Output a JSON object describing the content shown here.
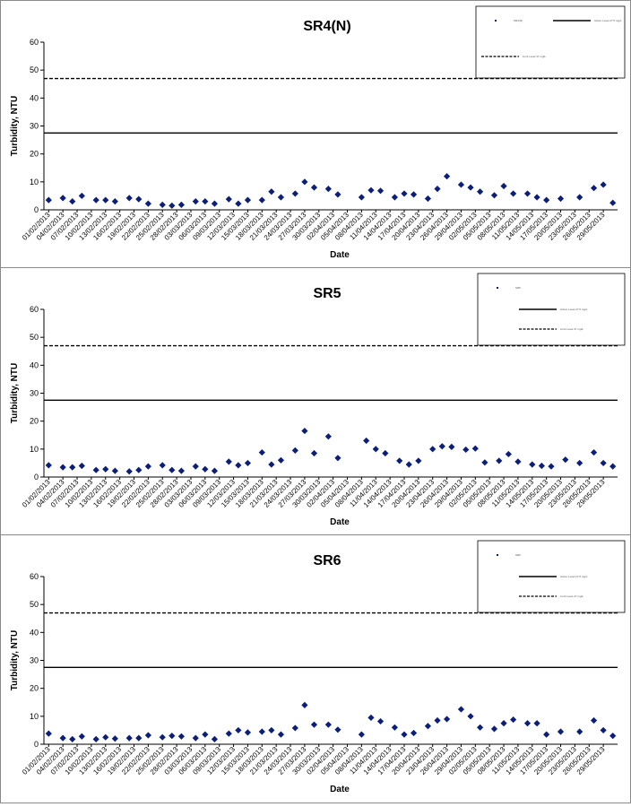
{
  "colors": {
    "marker": "#0b1f7a",
    "line": "#000000"
  },
  "chart_data": [
    {
      "type": "scatter",
      "title": "SR4(N)",
      "xlabel": "Date",
      "ylabel": "Turbidity, NTU",
      "ylim": [
        0,
        60
      ],
      "yticks": [
        0,
        10,
        20,
        30,
        40,
        50,
        60
      ],
      "grid": false,
      "legend_position": "top-right",
      "xticks": [
        "01/02/2013",
        "04/02/2013",
        "07/02/2013",
        "10/02/2013",
        "13/02/2013",
        "16/02/2013",
        "19/02/2013",
        "22/02/2013",
        "25/02/2013",
        "28/02/2013",
        "03/03/2013",
        "06/03/2013",
        "09/03/2013",
        "12/03/2013",
        "15/03/2013",
        "18/03/2013",
        "21/03/2013",
        "24/03/2013",
        "27/03/2013",
        "30/03/2013",
        "02/04/2013",
        "05/04/2013",
        "08/04/2013",
        "11/04/2013",
        "14/04/2013",
        "17/04/2013",
        "20/04/2013",
        "23/04/2013",
        "26/04/2013",
        "29/04/2013",
        "02/05/2013",
        "05/05/2013",
        "08/05/2013",
        "11/05/2013",
        "14/05/2013",
        "17/05/2013",
        "20/05/2013",
        "23/05/2013",
        "26/05/2013",
        "29/05/2013"
      ],
      "x_range": [
        "2013-02-01",
        "2013-05-31"
      ],
      "legend": [
        {
          "label": "SR4(N)",
          "kind": "marker"
        },
        {
          "label": "Action Level 27.5 mg/L",
          "kind": "solid"
        },
        {
          "label": "Limit Level 47 mg/L",
          "kind": "dashed"
        }
      ],
      "reference_lines": [
        {
          "name": "Action Level",
          "value": 27.5,
          "style": "solid"
        },
        {
          "name": "Limit Level",
          "value": 47,
          "style": "dashed"
        }
      ],
      "series": [
        {
          "name": "SR4(N)",
          "points": [
            [
              "2013-02-01",
              3.5
            ],
            [
              "2013-02-04",
              4.2
            ],
            [
              "2013-02-06",
              3.0
            ],
            [
              "2013-02-08",
              5.0
            ],
            [
              "2013-02-11",
              3.5
            ],
            [
              "2013-02-13",
              3.5
            ],
            [
              "2013-02-15",
              3.0
            ],
            [
              "2013-02-18",
              4.2
            ],
            [
              "2013-02-20",
              3.8
            ],
            [
              "2013-02-22",
              2.2
            ],
            [
              "2013-02-25",
              1.8
            ],
            [
              "2013-02-27",
              1.5
            ],
            [
              "2013-03-01",
              1.8
            ],
            [
              "2013-03-04",
              3.0
            ],
            [
              "2013-03-06",
              3.0
            ],
            [
              "2013-03-08",
              2.2
            ],
            [
              "2013-03-11",
              3.8
            ],
            [
              "2013-03-13",
              2.2
            ],
            [
              "2013-03-15",
              3.5
            ],
            [
              "2013-03-18",
              3.5
            ],
            [
              "2013-03-20",
              6.5
            ],
            [
              "2013-03-22",
              4.5
            ],
            [
              "2013-03-25",
              5.8
            ],
            [
              "2013-03-27",
              10.0
            ],
            [
              "2013-03-29",
              8.0
            ],
            [
              "2013-04-01",
              7.5
            ],
            [
              "2013-04-03",
              5.5
            ],
            [
              "2013-04-08",
              4.5
            ],
            [
              "2013-04-10",
              7.0
            ],
            [
              "2013-04-12",
              6.8
            ],
            [
              "2013-04-15",
              4.5
            ],
            [
              "2013-04-17",
              5.8
            ],
            [
              "2013-04-19",
              5.5
            ],
            [
              "2013-04-22",
              4.0
            ],
            [
              "2013-04-24",
              7.5
            ],
            [
              "2013-04-26",
              12.0
            ],
            [
              "2013-04-29",
              9.0
            ],
            [
              "2013-05-01",
              8.0
            ],
            [
              "2013-05-03",
              6.5
            ],
            [
              "2013-05-06",
              5.2
            ],
            [
              "2013-05-08",
              8.5
            ],
            [
              "2013-05-10",
              5.8
            ],
            [
              "2013-05-13",
              5.8
            ],
            [
              "2013-05-15",
              4.5
            ],
            [
              "2013-05-17",
              3.5
            ],
            [
              "2013-05-20",
              4.0
            ],
            [
              "2013-05-24",
              4.5
            ],
            [
              "2013-05-27",
              7.8
            ],
            [
              "2013-05-29",
              9.0
            ],
            [
              "2013-05-31",
              2.5
            ]
          ]
        }
      ]
    },
    {
      "type": "scatter",
      "title": "SR5",
      "xlabel": "Date",
      "ylabel": "Turbidity, NTU",
      "ylim": [
        0,
        60
      ],
      "yticks": [
        0,
        10,
        20,
        30,
        40,
        50,
        60
      ],
      "grid": false,
      "legend_position": "top-right",
      "xticks": [
        "01/02/2013",
        "04/02/2013",
        "07/02/2013",
        "10/02/2013",
        "13/02/2013",
        "16/02/2013",
        "19/02/2013",
        "22/02/2013",
        "25/02/2013",
        "28/02/2013",
        "03/03/2013",
        "06/03/2013",
        "09/03/2013",
        "12/03/2013",
        "15/03/2013",
        "18/03/2013",
        "21/03/2013",
        "24/03/2013",
        "27/03/2013",
        "30/03/2013",
        "02/04/2013",
        "05/04/2013",
        "08/04/2013",
        "11/04/2013",
        "14/04/2013",
        "17/04/2013",
        "20/04/2013",
        "23/04/2013",
        "26/04/2013",
        "29/04/2013",
        "02/05/2013",
        "05/05/2013",
        "08/05/2013",
        "11/05/2013",
        "14/05/2013",
        "17/05/2013",
        "20/05/2013",
        "23/05/2013",
        "26/05/2013",
        "29/05/2013"
      ],
      "x_range": [
        "2013-02-01",
        "2013-05-31"
      ],
      "legend": [
        {
          "label": "SR5",
          "kind": "marker"
        },
        {
          "label": "Action Level 27.5 mg/L",
          "kind": "solid"
        },
        {
          "label": "Limit Level 47 mg/L",
          "kind": "dashed"
        }
      ],
      "reference_lines": [
        {
          "name": "Action Level",
          "value": 27.5,
          "style": "solid"
        },
        {
          "name": "Limit Level",
          "value": 47,
          "style": "dashed"
        }
      ],
      "series": [
        {
          "name": "SR5",
          "points": [
            [
              "2013-02-01",
              4.2
            ],
            [
              "2013-02-04",
              3.5
            ],
            [
              "2013-02-06",
              3.5
            ],
            [
              "2013-02-08",
              4.0
            ],
            [
              "2013-02-11",
              2.5
            ],
            [
              "2013-02-13",
              2.8
            ],
            [
              "2013-02-15",
              2.2
            ],
            [
              "2013-02-18",
              2.0
            ],
            [
              "2013-02-20",
              2.5
            ],
            [
              "2013-02-22",
              3.8
            ],
            [
              "2013-02-25",
              4.2
            ],
            [
              "2013-02-27",
              2.5
            ],
            [
              "2013-03-01",
              2.2
            ],
            [
              "2013-03-04",
              3.8
            ],
            [
              "2013-03-06",
              2.8
            ],
            [
              "2013-03-08",
              2.2
            ],
            [
              "2013-03-11",
              5.5
            ],
            [
              "2013-03-13",
              4.2
            ],
            [
              "2013-03-15",
              5.0
            ],
            [
              "2013-03-18",
              8.8
            ],
            [
              "2013-03-20",
              4.5
            ],
            [
              "2013-03-22",
              6.0
            ],
            [
              "2013-03-25",
              9.5
            ],
            [
              "2013-03-27",
              16.5
            ],
            [
              "2013-03-29",
              8.5
            ],
            [
              "2013-04-01",
              14.5
            ],
            [
              "2013-04-03",
              6.8
            ],
            [
              "2013-04-09",
              13.0
            ],
            [
              "2013-04-11",
              10.0
            ],
            [
              "2013-04-13",
              8.5
            ],
            [
              "2013-04-16",
              5.8
            ],
            [
              "2013-04-18",
              4.5
            ],
            [
              "2013-04-20",
              5.8
            ],
            [
              "2013-04-23",
              10.0
            ],
            [
              "2013-04-25",
              11.0
            ],
            [
              "2013-04-27",
              10.8
            ],
            [
              "2013-04-30",
              9.8
            ],
            [
              "2013-05-02",
              10.2
            ],
            [
              "2013-05-04",
              5.2
            ],
            [
              "2013-05-07",
              5.8
            ],
            [
              "2013-05-09",
              8.2
            ],
            [
              "2013-05-11",
              5.5
            ],
            [
              "2013-05-14",
              4.5
            ],
            [
              "2013-05-16",
              4.0
            ],
            [
              "2013-05-18",
              3.8
            ],
            [
              "2013-05-21",
              6.2
            ],
            [
              "2013-05-24",
              5.0
            ],
            [
              "2013-05-27",
              8.8
            ],
            [
              "2013-05-29",
              5.0
            ],
            [
              "2013-05-31",
              3.8
            ]
          ]
        }
      ]
    },
    {
      "type": "scatter",
      "title": "SR6",
      "xlabel": "Date",
      "ylabel": "Turbidity, NTU",
      "ylim": [
        0,
        60
      ],
      "yticks": [
        0,
        10,
        20,
        30,
        40,
        50,
        60
      ],
      "grid": false,
      "legend_position": "top-right",
      "xticks": [
        "01/02/2013",
        "04/02/2013",
        "07/02/2013",
        "10/02/2013",
        "13/02/2013",
        "16/02/2013",
        "19/02/2013",
        "22/02/2013",
        "25/02/2013",
        "28/02/2013",
        "03/03/2013",
        "06/03/2013",
        "09/03/2013",
        "12/03/2013",
        "15/03/2013",
        "18/03/2013",
        "21/03/2013",
        "24/03/2013",
        "27/03/2013",
        "30/03/2013",
        "02/04/2013",
        "05/04/2013",
        "08/04/2013",
        "11/04/2013",
        "14/04/2013",
        "17/04/2013",
        "20/04/2013",
        "23/04/2013",
        "26/04/2013",
        "29/04/2013",
        "02/05/2013",
        "05/05/2013",
        "08/05/2013",
        "11/05/2013",
        "14/05/2013",
        "17/05/2013",
        "20/05/2013",
        "23/05/2013",
        "26/05/2013",
        "29/05/2013"
      ],
      "x_range": [
        "2013-02-01",
        "2013-05-31"
      ],
      "legend": [
        {
          "label": "SR6",
          "kind": "marker"
        },
        {
          "label": "Action Level 27.5 mg/L",
          "kind": "solid"
        },
        {
          "label": "Limit Level 47 mg/L",
          "kind": "dashed"
        }
      ],
      "reference_lines": [
        {
          "name": "Action Level",
          "value": 27.5,
          "style": "solid"
        },
        {
          "name": "Limit Level",
          "value": 47,
          "style": "dashed"
        }
      ],
      "series": [
        {
          "name": "SR6",
          "points": [
            [
              "2013-02-01",
              3.8
            ],
            [
              "2013-02-04",
              2.2
            ],
            [
              "2013-02-06",
              1.8
            ],
            [
              "2013-02-08",
              2.8
            ],
            [
              "2013-02-11",
              1.8
            ],
            [
              "2013-02-13",
              2.5
            ],
            [
              "2013-02-15",
              2.0
            ],
            [
              "2013-02-18",
              2.2
            ],
            [
              "2013-02-20",
              2.2
            ],
            [
              "2013-02-22",
              3.2
            ],
            [
              "2013-02-25",
              2.5
            ],
            [
              "2013-02-27",
              3.0
            ],
            [
              "2013-03-01",
              2.8
            ],
            [
              "2013-03-04",
              2.2
            ],
            [
              "2013-03-06",
              3.5
            ],
            [
              "2013-03-08",
              1.8
            ],
            [
              "2013-03-11",
              3.8
            ],
            [
              "2013-03-13",
              5.0
            ],
            [
              "2013-03-15",
              4.2
            ],
            [
              "2013-03-18",
              4.5
            ],
            [
              "2013-03-20",
              5.0
            ],
            [
              "2013-03-22",
              3.5
            ],
            [
              "2013-03-25",
              5.8
            ],
            [
              "2013-03-27",
              14.0
            ],
            [
              "2013-03-29",
              7.0
            ],
            [
              "2013-04-01",
              7.0
            ],
            [
              "2013-04-03",
              5.2
            ],
            [
              "2013-04-08",
              3.5
            ],
            [
              "2013-04-10",
              9.5
            ],
            [
              "2013-04-12",
              8.2
            ],
            [
              "2013-04-15",
              6.0
            ],
            [
              "2013-04-17",
              3.5
            ],
            [
              "2013-04-19",
              4.0
            ],
            [
              "2013-04-22",
              6.5
            ],
            [
              "2013-04-24",
              8.5
            ],
            [
              "2013-04-26",
              9.0
            ],
            [
              "2013-04-29",
              12.5
            ],
            [
              "2013-05-01",
              10.0
            ],
            [
              "2013-05-03",
              6.0
            ],
            [
              "2013-05-06",
              5.5
            ],
            [
              "2013-05-08",
              7.5
            ],
            [
              "2013-05-10",
              8.8
            ],
            [
              "2013-05-13",
              7.5
            ],
            [
              "2013-05-15",
              7.5
            ],
            [
              "2013-05-17",
              3.5
            ],
            [
              "2013-05-20",
              4.5
            ],
            [
              "2013-05-24",
              4.5
            ],
            [
              "2013-05-27",
              8.5
            ],
            [
              "2013-05-29",
              5.0
            ],
            [
              "2013-05-31",
              3.0
            ]
          ]
        }
      ]
    }
  ]
}
